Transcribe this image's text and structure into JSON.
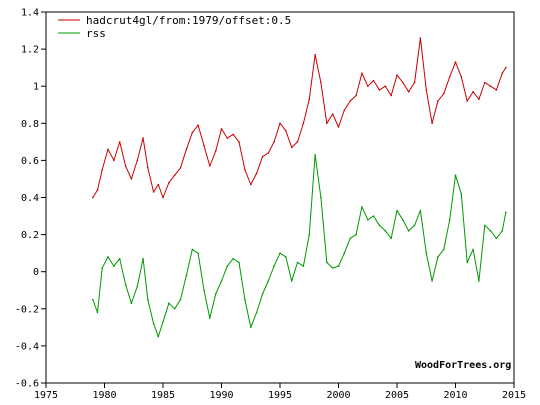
{
  "chart_data": {
    "type": "line",
    "title": "",
    "xlabel": "",
    "ylabel": "",
    "xlim": [
      1975,
      2015
    ],
    "ylim": [
      -0.6,
      1.4
    ],
    "x_ticks": [
      1975,
      1980,
      1985,
      1990,
      1995,
      2000,
      2005,
      2010,
      2015
    ],
    "y_ticks": [
      -0.6,
      -0.4,
      -0.2,
      0,
      0.2,
      0.4,
      0.6,
      0.8,
      1,
      1.2,
      1.4
    ],
    "y_tick_labels": [
      "-0.6",
      "-0.4",
      "-0.2",
      "0",
      "0.2",
      "0.4",
      "0.6",
      "0.8",
      "1",
      "1.2",
      "1.4"
    ],
    "grid": false,
    "legend_position": "top-left",
    "credit": "WoodForTrees.org",
    "series": [
      {
        "name": "hadcrut4gl/from:1979/offset:0.5",
        "color": "#cc0000",
        "points": [
          [
            1979.0,
            0.4
          ],
          [
            1979.4,
            0.44
          ],
          [
            1979.8,
            0.55
          ],
          [
            1980.3,
            0.66
          ],
          [
            1980.8,
            0.6
          ],
          [
            1981.3,
            0.7
          ],
          [
            1981.8,
            0.57
          ],
          [
            1982.3,
            0.5
          ],
          [
            1982.8,
            0.6
          ],
          [
            1983.3,
            0.72
          ],
          [
            1983.7,
            0.56
          ],
          [
            1984.2,
            0.43
          ],
          [
            1984.6,
            0.47
          ],
          [
            1985.0,
            0.4
          ],
          [
            1985.5,
            0.48
          ],
          [
            1986.0,
            0.52
          ],
          [
            1986.5,
            0.56
          ],
          [
            1987.0,
            0.66
          ],
          [
            1987.5,
            0.75
          ],
          [
            1988.0,
            0.79
          ],
          [
            1988.5,
            0.68
          ],
          [
            1989.0,
            0.57
          ],
          [
            1989.5,
            0.65
          ],
          [
            1990.0,
            0.77
          ],
          [
            1990.5,
            0.72
          ],
          [
            1991.0,
            0.74
          ],
          [
            1991.5,
            0.7
          ],
          [
            1992.0,
            0.55
          ],
          [
            1992.5,
            0.47
          ],
          [
            1993.0,
            0.53
          ],
          [
            1993.5,
            0.62
          ],
          [
            1994.0,
            0.64
          ],
          [
            1994.5,
            0.7
          ],
          [
            1995.0,
            0.8
          ],
          [
            1995.5,
            0.76
          ],
          [
            1996.0,
            0.67
          ],
          [
            1996.5,
            0.7
          ],
          [
            1997.0,
            0.8
          ],
          [
            1997.5,
            0.93
          ],
          [
            1998.0,
            1.17
          ],
          [
            1998.5,
            1.02
          ],
          [
            1999.0,
            0.8
          ],
          [
            1999.5,
            0.85
          ],
          [
            2000.0,
            0.78
          ],
          [
            2000.5,
            0.87
          ],
          [
            2001.0,
            0.92
          ],
          [
            2001.5,
            0.95
          ],
          [
            2002.0,
            1.07
          ],
          [
            2002.5,
            1.0
          ],
          [
            2003.0,
            1.03
          ],
          [
            2003.5,
            0.98
          ],
          [
            2004.0,
            1.0
          ],
          [
            2004.5,
            0.95
          ],
          [
            2005.0,
            1.06
          ],
          [
            2005.5,
            1.02
          ],
          [
            2006.0,
            0.97
          ],
          [
            2006.5,
            1.02
          ],
          [
            2007.0,
            1.26
          ],
          [
            2007.5,
            0.98
          ],
          [
            2008.0,
            0.8
          ],
          [
            2008.5,
            0.92
          ],
          [
            2009.0,
            0.96
          ],
          [
            2009.5,
            1.05
          ],
          [
            2010.0,
            1.13
          ],
          [
            2010.5,
            1.05
          ],
          [
            2011.0,
            0.92
          ],
          [
            2011.5,
            0.97
          ],
          [
            2012.0,
            0.93
          ],
          [
            2012.5,
            1.02
          ],
          [
            2013.0,
            1.0
          ],
          [
            2013.5,
            0.98
          ],
          [
            2014.0,
            1.07
          ],
          [
            2014.3,
            1.1
          ]
        ]
      },
      {
        "name": "rss",
        "color": "#009900",
        "points": [
          [
            1979.0,
            -0.15
          ],
          [
            1979.4,
            -0.22
          ],
          [
            1979.8,
            0.02
          ],
          [
            1980.3,
            0.08
          ],
          [
            1980.8,
            0.03
          ],
          [
            1981.3,
            0.07
          ],
          [
            1981.8,
            -0.07
          ],
          [
            1982.3,
            -0.17
          ],
          [
            1982.8,
            -0.08
          ],
          [
            1983.3,
            0.07
          ],
          [
            1983.7,
            -0.15
          ],
          [
            1984.2,
            -0.28
          ],
          [
            1984.6,
            -0.35
          ],
          [
            1985.0,
            -0.27
          ],
          [
            1985.5,
            -0.17
          ],
          [
            1986.0,
            -0.2
          ],
          [
            1986.5,
            -0.15
          ],
          [
            1987.0,
            -0.02
          ],
          [
            1987.5,
            0.12
          ],
          [
            1988.0,
            0.1
          ],
          [
            1988.5,
            -0.1
          ],
          [
            1989.0,
            -0.25
          ],
          [
            1989.5,
            -0.12
          ],
          [
            1990.0,
            -0.05
          ],
          [
            1990.5,
            0.03
          ],
          [
            1991.0,
            0.07
          ],
          [
            1991.5,
            0.05
          ],
          [
            1992.0,
            -0.15
          ],
          [
            1992.5,
            -0.3
          ],
          [
            1993.0,
            -0.22
          ],
          [
            1993.5,
            -0.12
          ],
          [
            1994.0,
            -0.05
          ],
          [
            1994.5,
            0.03
          ],
          [
            1995.0,
            0.1
          ],
          [
            1995.5,
            0.08
          ],
          [
            1996.0,
            -0.05
          ],
          [
            1996.5,
            0.05
          ],
          [
            1997.0,
            0.03
          ],
          [
            1997.5,
            0.2
          ],
          [
            1998.0,
            0.63
          ],
          [
            1998.5,
            0.4
          ],
          [
            1999.0,
            0.05
          ],
          [
            1999.5,
            0.02
          ],
          [
            2000.0,
            0.03
          ],
          [
            2000.5,
            0.1
          ],
          [
            2001.0,
            0.18
          ],
          [
            2001.5,
            0.2
          ],
          [
            2002.0,
            0.35
          ],
          [
            2002.5,
            0.28
          ],
          [
            2003.0,
            0.3
          ],
          [
            2003.5,
            0.25
          ],
          [
            2004.0,
            0.22
          ],
          [
            2004.5,
            0.18
          ],
          [
            2005.0,
            0.33
          ],
          [
            2005.5,
            0.28
          ],
          [
            2006.0,
            0.22
          ],
          [
            2006.5,
            0.25
          ],
          [
            2007.0,
            0.33
          ],
          [
            2007.5,
            0.1
          ],
          [
            2008.0,
            -0.05
          ],
          [
            2008.5,
            0.08
          ],
          [
            2009.0,
            0.12
          ],
          [
            2009.5,
            0.28
          ],
          [
            2010.0,
            0.52
          ],
          [
            2010.5,
            0.42
          ],
          [
            2011.0,
            0.05
          ],
          [
            2011.5,
            0.12
          ],
          [
            2012.0,
            -0.05
          ],
          [
            2012.5,
            0.25
          ],
          [
            2013.0,
            0.22
          ],
          [
            2013.5,
            0.18
          ],
          [
            2014.0,
            0.22
          ],
          [
            2014.3,
            0.32
          ]
        ]
      }
    ]
  }
}
